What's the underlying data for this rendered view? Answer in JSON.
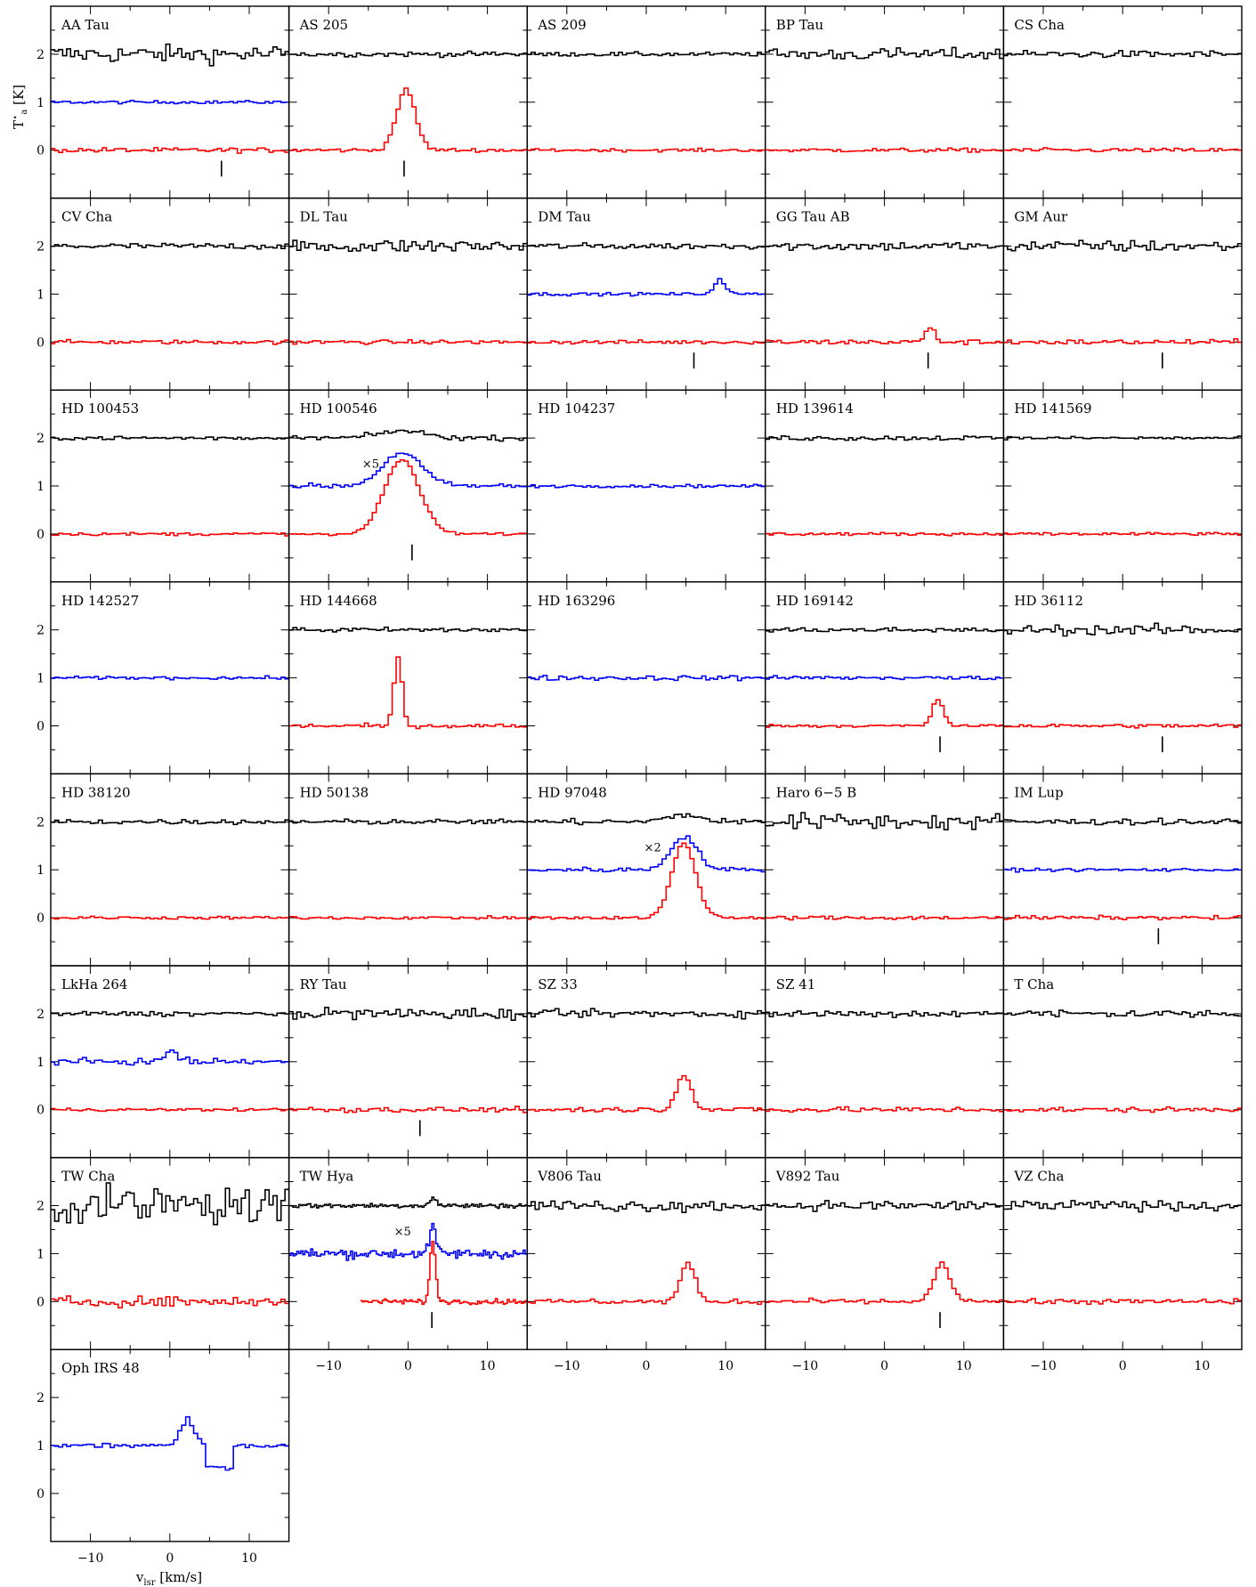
{
  "figure": {
    "ylabel": "T*a [K]",
    "ylabel_main": "T",
    "ylabel_sup": "⋆",
    "ylabel_sub": "a",
    "ylabel_unit": " [K]",
    "xlabel_main": "v",
    "xlabel_sub": "lsr",
    "xlabel_unit": " [km/s]"
  },
  "chart_data": {
    "type": "line",
    "layout": "grid of 36 spectra panels, 5 columns",
    "xlim": [
      -15,
      15
    ],
    "ylim": [
      -1,
      3
    ],
    "x_ticks": [
      -10,
      0,
      10
    ],
    "x_tick_labels": [
      "−10",
      "0",
      "10"
    ],
    "y_ticks": [
      0,
      1,
      2
    ],
    "y_tick_labels": [
      "0",
      "1",
      "2"
    ],
    "legend": "none",
    "grid": false,
    "series_colors": {
      "top": "#000000",
      "middle": "#0000ff",
      "bottom": "#ff0000"
    },
    "series_offsets": {
      "top": 2,
      "middle": 1,
      "bottom": 0
    },
    "panels": [
      {
        "name": "AA Tau",
        "series": [
          "top",
          "middle",
          "bottom"
        ],
        "noise": [
          0.18,
          0.03,
          0.05
        ],
        "marker": 6.5
      },
      {
        "name": "AS 205",
        "series": [
          "top",
          "bottom"
        ],
        "noise": [
          0.05,
          0.04
        ],
        "marker": -0.5,
        "peak": {
          "series": "bottom",
          "v": -0.5,
          "amp": 1.25,
          "width": 1.2
        }
      },
      {
        "name": "AS 209",
        "series": [
          "top",
          "bottom"
        ],
        "noise": [
          0.04,
          0.03
        ]
      },
      {
        "name": "BP Tau",
        "series": [
          "top",
          "bottom"
        ],
        "noise": [
          0.12,
          0.04
        ]
      },
      {
        "name": "CS Cha",
        "series": [
          "top",
          "bottom"
        ],
        "noise": [
          0.07,
          0.04
        ]
      },
      {
        "name": "CV Cha",
        "series": [
          "top",
          "bottom"
        ],
        "noise": [
          0.06,
          0.04
        ]
      },
      {
        "name": "DL Tau",
        "series": [
          "top",
          "bottom"
        ],
        "noise": [
          0.14,
          0.04
        ]
      },
      {
        "name": "DM Tau",
        "series": [
          "top",
          "middle",
          "bottom"
        ],
        "noise": [
          0.06,
          0.03,
          0.04
        ],
        "marker": 6,
        "peak": {
          "series": "middle",
          "v": 9,
          "amp": 0.3,
          "width": 0.7
        }
      },
      {
        "name": "GG Tau AB",
        "series": [
          "top",
          "bottom"
        ],
        "noise": [
          0.09,
          0.05
        ],
        "marker": 5.5,
        "peak": {
          "series": "bottom",
          "v": 5.5,
          "amp": 0.3,
          "width": 0.6
        }
      },
      {
        "name": "GM Aur",
        "series": [
          "top",
          "bottom"
        ],
        "noise": [
          0.12,
          0.05
        ],
        "marker": 5
      },
      {
        "name": "HD 100453",
        "series": [
          "top",
          "bottom"
        ],
        "noise": [
          0.04,
          0.03
        ]
      },
      {
        "name": "HD 100546",
        "series": [
          "top",
          "middle",
          "bottom"
        ],
        "noise": [
          0.05,
          0.05,
          0.03
        ],
        "marker": 0.5,
        "scale_note": "×5",
        "peak": {
          "series": "bottom",
          "v": -1,
          "amp": 1.55,
          "width": 2.2
        }
      },
      {
        "name": "HD 104237",
        "series": [
          "middle"
        ],
        "noise": [
          0.03
        ]
      },
      {
        "name": "HD 139614",
        "series": [
          "top",
          "bottom"
        ],
        "noise": [
          0.05,
          0.03
        ]
      },
      {
        "name": "HD 141569",
        "series": [
          "top",
          "bottom"
        ],
        "noise": [
          0.03,
          0.03
        ]
      },
      {
        "name": "HD 142527",
        "series": [
          "middle"
        ],
        "noise": [
          0.03
        ]
      },
      {
        "name": "HD 144668",
        "series": [
          "top",
          "bottom"
        ],
        "noise": [
          0.05,
          0.04
        ],
        "peak": {
          "series": "bottom",
          "v": -1.5,
          "amp": 1.45,
          "width": 0.5
        }
      },
      {
        "name": "HD 163296",
        "series": [
          "middle"
        ],
        "noise": [
          0.05
        ]
      },
      {
        "name": "HD 169142",
        "series": [
          "top",
          "middle",
          "bottom"
        ],
        "noise": [
          0.05,
          0.04,
          0.03
        ],
        "marker": 7,
        "peak": {
          "series": "bottom",
          "v": 6.5,
          "amp": 0.55,
          "width": 0.7
        }
      },
      {
        "name": "HD 36112",
        "series": [
          "top",
          "bottom"
        ],
        "noise": [
          0.1,
          0.04
        ],
        "marker": 5
      },
      {
        "name": "HD 38120",
        "series": [
          "top",
          "bottom"
        ],
        "noise": [
          0.05,
          0.03
        ]
      },
      {
        "name": "HD 50138",
        "series": [
          "top",
          "bottom"
        ],
        "noise": [
          0.05,
          0.03
        ]
      },
      {
        "name": "HD 97048",
        "series": [
          "top",
          "middle",
          "bottom"
        ],
        "noise": [
          0.06,
          0.05,
          0.03
        ],
        "scale_note": "×2",
        "peak": {
          "series": "bottom",
          "v": 4.5,
          "amp": 1.55,
          "width": 1.5
        }
      },
      {
        "name": "Haro 6−5 B",
        "series": [
          "top",
          "bottom"
        ],
        "noise": [
          0.17,
          0.04
        ]
      },
      {
        "name": "IM Lup",
        "series": [
          "top",
          "middle",
          "bottom"
        ],
        "noise": [
          0.06,
          0.03,
          0.04
        ],
        "marker": 4.5
      },
      {
        "name": "LkHa 264",
        "series": [
          "top",
          "middle",
          "bottom"
        ],
        "noise": [
          0.05,
          0.06,
          0.03
        ],
        "peak": {
          "series": "middle",
          "v": 0,
          "amp": 0.25,
          "width": 0.7
        }
      },
      {
        "name": "RY Tau",
        "series": [
          "top",
          "bottom"
        ],
        "noise": [
          0.12,
          0.05
        ],
        "marker": 1.5
      },
      {
        "name": "SZ 33",
        "series": [
          "top",
          "bottom"
        ],
        "noise": [
          0.08,
          0.05
        ],
        "peak": {
          "series": "bottom",
          "v": 4.5,
          "amp": 0.75,
          "width": 0.9
        }
      },
      {
        "name": "SZ 41",
        "series": [
          "top",
          "bottom"
        ],
        "noise": [
          0.08,
          0.05
        ]
      },
      {
        "name": "T Cha",
        "series": [
          "top",
          "bottom"
        ],
        "noise": [
          0.08,
          0.05
        ]
      },
      {
        "name": "TW Cha",
        "series": [
          "top",
          "bottom"
        ],
        "noise": [
          0.38,
          0.1
        ]
      },
      {
        "name": "TW Hya",
        "series": [
          "top",
          "middle",
          "bottom"
        ],
        "noise": [
          0.05,
          0.1,
          0.05
        ],
        "marker": 3,
        "scale_note": "×5",
        "peak": {
          "series": "bottom",
          "v": 3,
          "amp": 1.25,
          "width": 0.35
        }
      },
      {
        "name": "V806 Tau",
        "series": [
          "top",
          "bottom"
        ],
        "noise": [
          0.12,
          0.05
        ],
        "peak": {
          "series": "bottom",
          "v": 5,
          "amp": 0.8,
          "width": 0.9
        }
      },
      {
        "name": "V892 Tau",
        "series": [
          "top",
          "bottom"
        ],
        "noise": [
          0.1,
          0.05
        ],
        "marker": 7,
        "peak": {
          "series": "bottom",
          "v": 7,
          "amp": 0.8,
          "width": 1.0
        }
      },
      {
        "name": "VZ Cha",
        "series": [
          "top",
          "bottom"
        ],
        "noise": [
          0.1,
          0.05
        ]
      },
      {
        "name": "Oph IRS 48",
        "series": [
          "middle"
        ],
        "noise": [
          0.05
        ],
        "peak": {
          "series": "middle",
          "v": 2,
          "amp": 0.55,
          "width": 0.8
        },
        "dip": {
          "v": 5,
          "amp": -0.45,
          "width": 1.2
        }
      }
    ]
  }
}
